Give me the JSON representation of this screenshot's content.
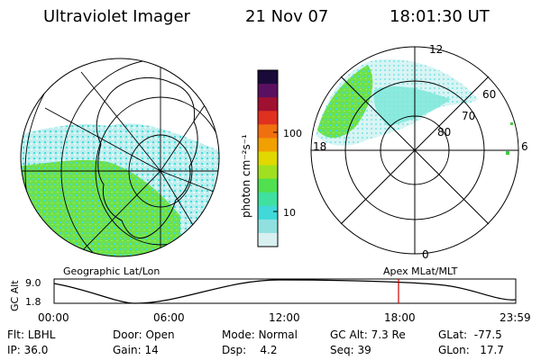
{
  "header": {
    "title": "Ultraviolet Imager",
    "date": "21 Nov 07",
    "time": "18:01:30 UT"
  },
  "colorbar": {
    "label": "photon cm⁻²s⁻¹",
    "ticks": [
      "100",
      "10"
    ],
    "colors": [
      "#1a0a3a",
      "#5a1060",
      "#a01030",
      "#e03020",
      "#f07010",
      "#f0a000",
      "#e0d800",
      "#a0e020",
      "#50e050",
      "#40e0a0",
      "#40d8d8",
      "#90e0e0",
      "#d8f0f0"
    ]
  },
  "geo_map": {
    "caption": "Geographic Lat/Lon",
    "colors": {
      "aurora_green": "#66dd44",
      "aurora_cyan": "#44dddd",
      "aurora_pale": "#bfeeee"
    }
  },
  "polar_plot": {
    "caption": "Apex MLat/MLT",
    "mlat_labels": [
      "60",
      "70",
      "80"
    ],
    "mlt_labels": [
      "12",
      "18",
      "6",
      "0"
    ]
  },
  "timeline": {
    "axis_title": "GC Alt",
    "y_ticks": [
      "9.0",
      "1.8"
    ],
    "x_ticks": [
      "00:00",
      "06:00",
      "12:00",
      "18:00",
      "23:59"
    ],
    "marker_color": "#cc0000",
    "marker_time": "18:01:30"
  },
  "status": {
    "filter": {
      "label": "Flt:",
      "value": "LBHL"
    },
    "ip": {
      "label": "IP:",
      "value": "36.0"
    },
    "door": {
      "label": "Door:",
      "value": "Open"
    },
    "gain": {
      "label": "Gain:",
      "value": "14"
    },
    "mode": {
      "label": "Mode:",
      "value": "Normal"
    },
    "dsp": {
      "label": "Dsp:",
      "value": "4.2"
    },
    "gc_alt": {
      "label": "GC Alt:",
      "value": "7.3 Re"
    },
    "seq": {
      "label": "Seq:",
      "value": "39"
    },
    "glat": {
      "label": "GLat:",
      "value": "-77.5"
    },
    "glon": {
      "label": "GLon:",
      "value": "17.7"
    }
  }
}
